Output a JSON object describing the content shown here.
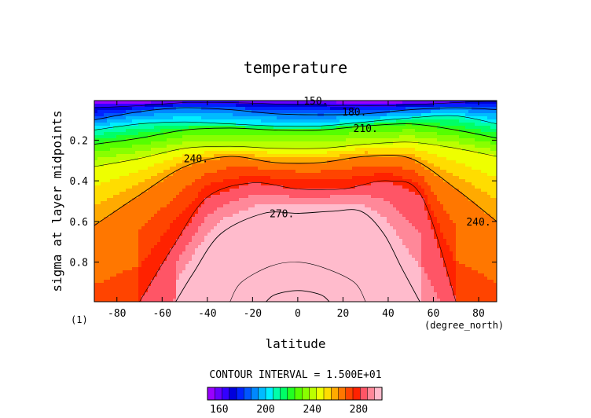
{
  "chart_data": {
    "type": "heatmap",
    "title": "temperature",
    "xlabel": "latitude",
    "ylabel": "sigma at layer midpoints",
    "x_unit_label": "(degree_north)",
    "panel_index_label": "(1)",
    "xlim": [
      -90,
      88
    ],
    "ylim": [
      0.005,
      0.995
    ],
    "y_inverted": true,
    "x_ticks": [
      -80,
      -60,
      -40,
      -20,
      0,
      20,
      40,
      60,
      80
    ],
    "x_tick_labels": [
      "-80",
      "-60",
      "-40",
      "-20",
      "0",
      "20",
      "40",
      "60",
      "80"
    ],
    "y_ticks": [
      0.2,
      0.4,
      0.6,
      0.8
    ],
    "y_tick_labels": [
      "0.2",
      "0.4",
      "0.6",
      "0.8"
    ],
    "contour_interval_text": "CONTOUR INTERVAL = 1.500E+01",
    "colorbar_ticks": [
      160,
      200,
      240,
      280
    ],
    "colorbar_tick_labels": [
      "160",
      "200",
      "240",
      "280"
    ],
    "color_levels": [
      150,
      155,
      160,
      165,
      170,
      175,
      180,
      185,
      190,
      195,
      200,
      205,
      210,
      215,
      220,
      225,
      230,
      235,
      240,
      245,
      250,
      255,
      260,
      265,
      270,
      275,
      280,
      285,
      290,
      295,
      300
    ],
    "colors": [
      "#9900ff",
      "#6600ff",
      "#3300ff",
      "#0000dd",
      "#0022ff",
      "#0055ff",
      "#0088ff",
      "#00bbff",
      "#00eeff",
      "#00ffaa",
      "#00ff66",
      "#22ff22",
      "#55ff00",
      "#88ff00",
      "#bbff00",
      "#eeff00",
      "#ffdd00",
      "#ffaa00",
      "#ff7700",
      "#ff4400",
      "#ff2200",
      "#ff5566",
      "#ff8899",
      "#ffbbcc"
    ],
    "contour_labels": [
      {
        "text": "150.",
        "lat": 8,
        "sigma": 0.005
      },
      {
        "text": "180.",
        "lat": 25,
        "sigma": 0.06
      },
      {
        "text": "210.",
        "lat": 30,
        "sigma": 0.14
      },
      {
        "text": "240.",
        "lat": -45,
        "sigma": 0.29
      },
      {
        "text": "240.",
        "lat": 80,
        "sigma": 0.6
      },
      {
        "text": "270.",
        "lat": -7,
        "sigma": 0.56
      }
    ],
    "isotherms": [
      {
        "level": 150,
        "lat": [
          -90,
          -60,
          -30,
          0,
          30,
          60,
          88
        ],
        "sigma": [
          0.005,
          0.006,
          0.006,
          0.004,
          0.005,
          0.006,
          0.006
        ]
      },
      {
        "level": 165,
        "lat": [
          -90,
          -70,
          -50,
          -30,
          0,
          20,
          40,
          60,
          80,
          88
        ],
        "sigma": [
          0.04,
          0.03,
          0.015,
          0.015,
          0.025,
          0.03,
          0.03,
          0.02,
          0.01,
          0.01
        ]
      },
      {
        "level": 180,
        "lat": [
          -90,
          -70,
          -50,
          -30,
          -10,
          10,
          30,
          50,
          70,
          88
        ],
        "sigma": [
          0.1,
          0.06,
          0.04,
          0.05,
          0.07,
          0.075,
          0.07,
          0.05,
          0.04,
          0.05
        ]
      },
      {
        "level": 195,
        "lat": [
          -90,
          -70,
          -50,
          -30,
          -10,
          10,
          30,
          50,
          70,
          88
        ],
        "sigma": [
          0.15,
          0.12,
          0.11,
          0.12,
          0.13,
          0.13,
          0.11,
          0.09,
          0.08,
          0.12
        ]
      },
      {
        "level": 210,
        "lat": [
          -90,
          -70,
          -50,
          -30,
          -10,
          10,
          30,
          50,
          70,
          88
        ],
        "sigma": [
          0.22,
          0.19,
          0.15,
          0.14,
          0.15,
          0.15,
          0.13,
          0.12,
          0.15,
          0.19
        ]
      },
      {
        "level": 225,
        "lat": [
          -90,
          -70,
          -50,
          -30,
          -10,
          10,
          30,
          50,
          70,
          88
        ],
        "sigma": [
          0.33,
          0.29,
          0.24,
          0.23,
          0.24,
          0.24,
          0.22,
          0.21,
          0.24,
          0.28
        ]
      },
      {
        "level": 240,
        "lat": [
          -90,
          -70,
          -50,
          -30,
          -10,
          10,
          30,
          50,
          70,
          88
        ],
        "sigma": [
          0.62,
          0.47,
          0.33,
          0.28,
          0.31,
          0.31,
          0.28,
          0.29,
          0.44,
          0.6
        ]
      },
      {
        "level": 255,
        "lat": [
          -70,
          -55,
          -40,
          -20,
          0,
          20,
          40,
          55,
          70
        ],
        "sigma": [
          0.995,
          0.72,
          0.48,
          0.41,
          0.44,
          0.44,
          0.4,
          0.48,
          0.995
        ]
      },
      {
        "level": 270,
        "lat": [
          -54,
          -46,
          -34,
          -15,
          0,
          15,
          28,
          38,
          46,
          54
        ],
        "sigma": [
          0.995,
          0.85,
          0.66,
          0.56,
          0.56,
          0.55,
          0.55,
          0.66,
          0.83,
          0.995
        ]
      },
      {
        "level": 285,
        "lat": [
          -30,
          -25,
          -12,
          0,
          12,
          25,
          30
        ],
        "sigma": [
          0.995,
          0.9,
          0.82,
          0.8,
          0.83,
          0.9,
          0.995
        ]
      },
      {
        "level": 300,
        "lat": [
          -14,
          -10,
          0,
          10,
          14
        ],
        "sigma": [
          0.995,
          0.96,
          0.94,
          0.96,
          0.995
        ]
      }
    ]
  }
}
